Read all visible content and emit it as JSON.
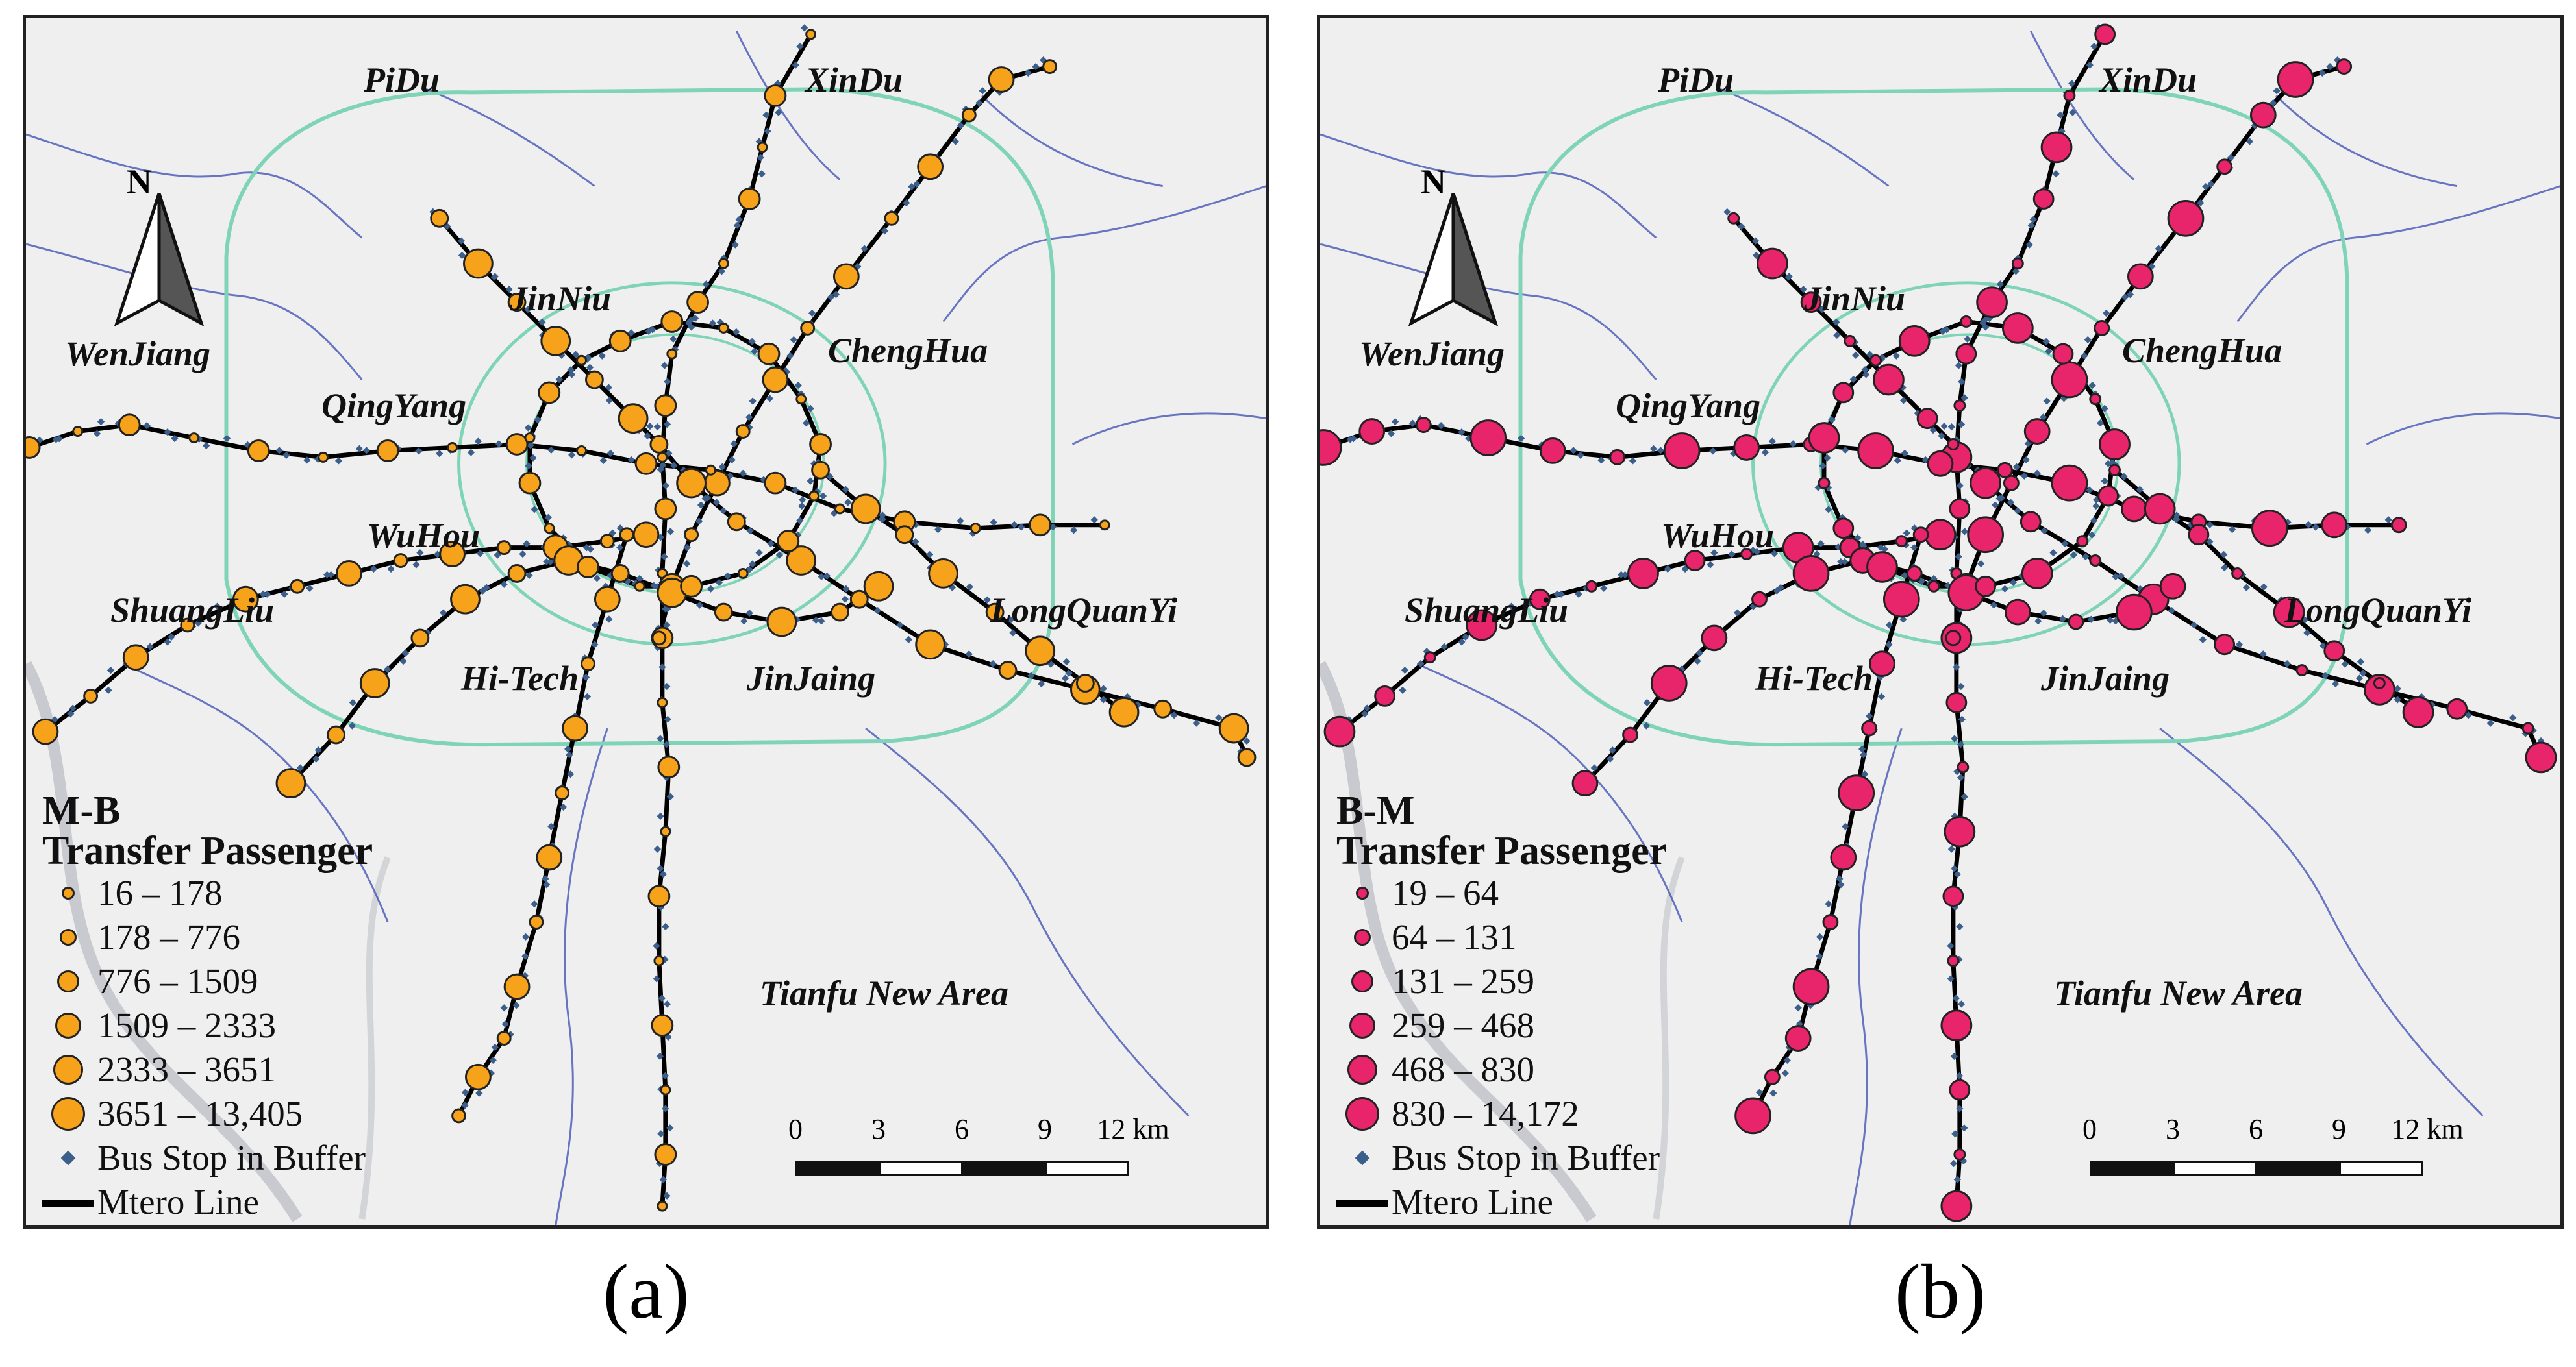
{
  "colors": {
    "map_background": "#efeff0",
    "ring_road": "#7fd4b8",
    "district_boundary": "#3a4bb0",
    "metro_line": "#000000",
    "bus_stop": "#3b5f8a",
    "orange_symbol": "#f7a21b",
    "pink_symbol": "#e8256a"
  },
  "district_labels": [
    "PiDu",
    "XinDu",
    "JinNiu",
    "WenJiang",
    "ChengHua",
    "QingYang",
    "WuHou",
    "ShuangLiu",
    "LongQuanYi",
    "Hi-Tech",
    "JinJaing",
    "Tianfu New Area"
  ],
  "north_arrow": {
    "label": "N",
    "icon": "north-arrow-icon"
  },
  "scale_bar": {
    "ticks": [
      "0",
      "3",
      "6",
      "9",
      "12 km"
    ]
  },
  "panels": [
    {
      "caption": "(a)",
      "legend": {
        "title_line1": "M-B",
        "title_line2": "Transfer Passenger",
        "classes": [
          "16    –  178",
          "178   –  776",
          "776   –  1509",
          "1509 –  2333",
          "2333 –  3651",
          "3651 –  13,405"
        ],
        "symbol_color": "#f7a21b",
        "bus_stop_label": "Bus Stop in Buffer",
        "metro_label": "Mtero Line"
      }
    },
    {
      "caption": "(b)",
      "legend": {
        "title_line1": "B-M",
        "title_line2": "Transfer Passenger",
        "classes": [
          "19  – 64",
          "64  – 131",
          "131 – 259",
          "259 – 468",
          "468 – 830",
          "830 – 14,172"
        ],
        "symbol_color": "#e8256a",
        "bus_stop_label": "Bus Stop in Buffer",
        "metro_label": "Mtero Line"
      }
    }
  ]
}
